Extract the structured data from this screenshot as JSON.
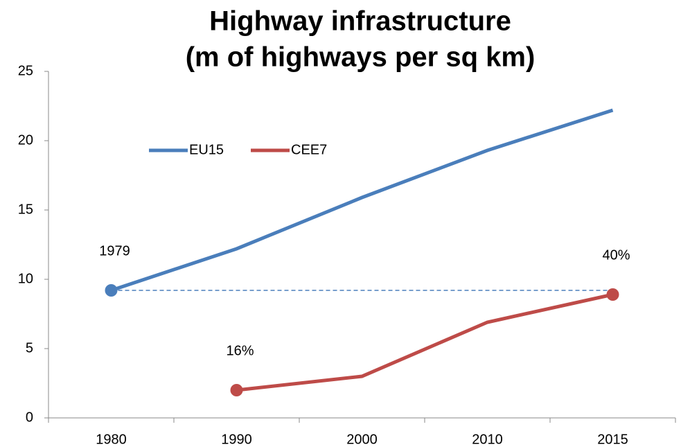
{
  "chart_data": {
    "type": "line",
    "title": [
      "Highway infrastructure",
      "(m of highways per sq km)"
    ],
    "categories": [
      "1980",
      "1990",
      "2000",
      "2010",
      "2015"
    ],
    "series": [
      {
        "name": "EU15",
        "color": "#4a7ebb",
        "values": [
          9.2,
          12.2,
          15.9,
          19.3,
          22.2
        ]
      },
      {
        "name": "CEE7",
        "color": "#be4b48",
        "values": [
          null,
          2.0,
          3.0,
          6.9,
          8.9
        ]
      }
    ],
    "annotations": [
      {
        "text": "1979",
        "series": "EU15",
        "category": "1980"
      },
      {
        "text": "16%",
        "series": "CEE7",
        "category": "1990"
      },
      {
        "text": "40%",
        "series": "CEE7",
        "category": "2015"
      }
    ],
    "ylim": [
      0,
      25
    ],
    "yticks": [
      0,
      5,
      10,
      15,
      20,
      25
    ],
    "grid": false,
    "legend": "top-left"
  }
}
